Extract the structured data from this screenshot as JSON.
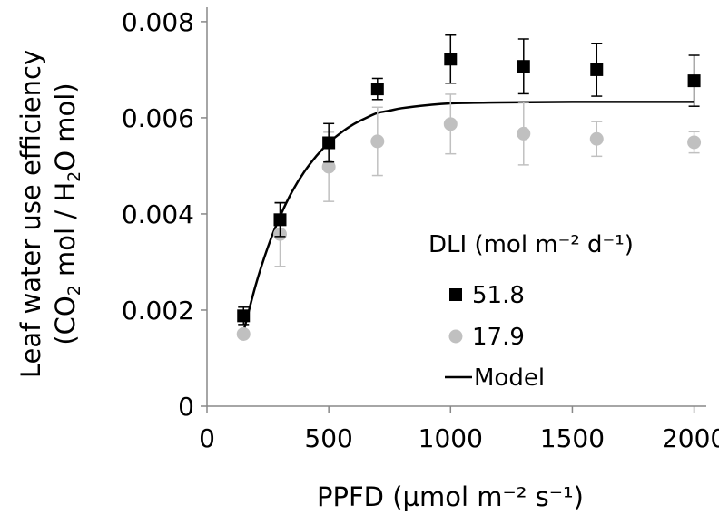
{
  "chart_data": {
    "type": "scatter",
    "xlabel": "PPFD (µmol m⁻² s⁻¹)",
    "ylabel_line1": "Leaf water use efficiency",
    "ylabel_line2_prefix": "(CO",
    "ylabel_line2_sub1": "2",
    "ylabel_line2_middle": " mol / H",
    "ylabel_line2_sub2": "2",
    "ylabel_line2_suffix": "O mol)",
    "xlim": [
      0,
      2050
    ],
    "ylim": [
      0,
      0.0083
    ],
    "x_ticks": [
      0,
      500,
      1000,
      1500,
      2000
    ],
    "x_tick_labels": [
      "0",
      "500",
      "1000",
      "1500",
      "2000"
    ],
    "y_ticks": [
      0,
      0.002,
      0.004,
      0.006,
      0.008
    ],
    "y_tick_labels": [
      "0",
      "0.002",
      "0.004",
      "0.006",
      "0.008"
    ],
    "grid": false,
    "legend_title": "DLI (mol m⁻² d⁻¹)",
    "legend_position": "right",
    "series": [
      {
        "name": "51.8",
        "marker": "square",
        "color": "#000000",
        "points": [
          {
            "x": 150,
            "y": 0.00188,
            "err": 0.00018
          },
          {
            "x": 300,
            "y": 0.00388,
            "err": 0.00035
          },
          {
            "x": 500,
            "y": 0.00548,
            "err": 0.0004
          },
          {
            "x": 700,
            "y": 0.0066,
            "err": 0.00022
          },
          {
            "x": 1000,
            "y": 0.00722,
            "err": 0.0005
          },
          {
            "x": 1300,
            "y": 0.00707,
            "err": 0.00057
          },
          {
            "x": 1600,
            "y": 0.007,
            "err": 0.00055
          },
          {
            "x": 2000,
            "y": 0.00677,
            "err": 0.00053
          }
        ]
      },
      {
        "name": "17.9",
        "marker": "circle",
        "color": "#c0c0c0",
        "points": [
          {
            "x": 150,
            "y": 0.0015,
            "err": 0
          },
          {
            "x": 300,
            "y": 0.00358,
            "err": 0.00067
          },
          {
            "x": 500,
            "y": 0.00498,
            "err": 0.00072
          },
          {
            "x": 700,
            "y": 0.00551,
            "err": 0.00071
          },
          {
            "x": 1000,
            "y": 0.00587,
            "err": 0.00062
          },
          {
            "x": 1300,
            "y": 0.00567,
            "err": 0.00065
          },
          {
            "x": 1600,
            "y": 0.00556,
            "err": 0.00036
          },
          {
            "x": 2000,
            "y": 0.00549,
            "err": 0.00022
          }
        ]
      }
    ],
    "model": {
      "name": "Model",
      "color": "#000000",
      "points": [
        {
          "x": 150,
          "y": 0.00155
        },
        {
          "x": 200,
          "y": 0.00252
        },
        {
          "x": 250,
          "y": 0.00331
        },
        {
          "x": 300,
          "y": 0.00395
        },
        {
          "x": 350,
          "y": 0.00447
        },
        {
          "x": 400,
          "y": 0.00488
        },
        {
          "x": 450,
          "y": 0.00521
        },
        {
          "x": 500,
          "y": 0.00548
        },
        {
          "x": 550,
          "y": 0.00569
        },
        {
          "x": 600,
          "y": 0.00586
        },
        {
          "x": 650,
          "y": 0.00599
        },
        {
          "x": 700,
          "y": 0.0061
        },
        {
          "x": 750,
          "y": 0.00615
        },
        {
          "x": 800,
          "y": 0.0062
        },
        {
          "x": 900,
          "y": 0.00626
        },
        {
          "x": 1000,
          "y": 0.0063
        },
        {
          "x": 1200,
          "y": 0.00632
        },
        {
          "x": 1500,
          "y": 0.00633
        },
        {
          "x": 2000,
          "y": 0.00633
        }
      ]
    }
  }
}
